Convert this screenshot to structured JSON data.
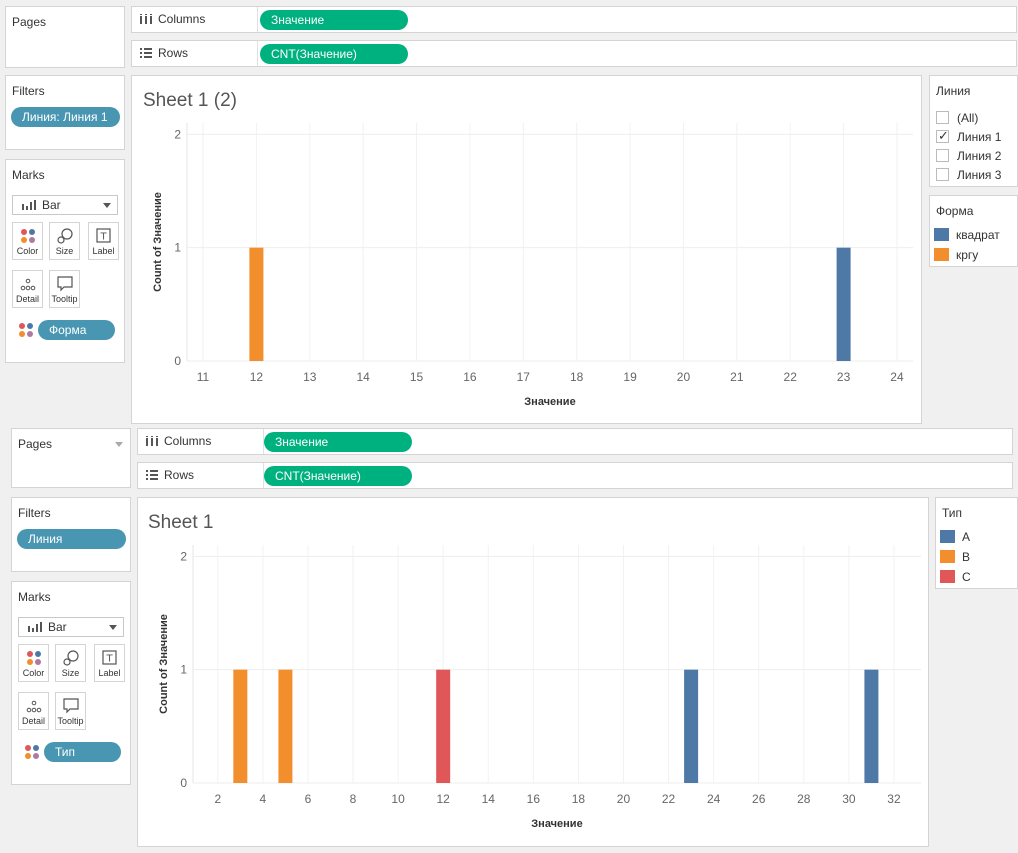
{
  "top": {
    "pages_title": "Pages",
    "columns_label": "Columns",
    "columns_pill": "Значение",
    "rows_label": "Rows",
    "rows_pill": "CNT(Значение)",
    "filters_title": "Filters",
    "filter_pill": "Линия: Линия 1",
    "marks_title": "Marks",
    "mark_type": "Bar",
    "mark_buttons": [
      "Color",
      "Size",
      "Label",
      "Detail",
      "Tooltip"
    ],
    "marks_pill": "Форма",
    "sheet_title": "Sheet 1 (2)",
    "filter_card": {
      "title": "Линия",
      "items": [
        {
          "label": "(All)",
          "checked": false
        },
        {
          "label": "Линия 1",
          "checked": true
        },
        {
          "label": "Линия 2",
          "checked": false
        },
        {
          "label": "Линия 3",
          "checked": false
        }
      ]
    },
    "legend": {
      "title": "Форма",
      "items": [
        {
          "label": "квадрат",
          "color": "#4e79a7"
        },
        {
          "label": "кргу",
          "color": "#f28e2b"
        }
      ]
    },
    "chart_data": {
      "type": "bar",
      "xlabel": "Значение",
      "ylabel": "Count of Значение",
      "xlim": [
        10.7,
        24.3
      ],
      "ylim": [
        0,
        2.1
      ],
      "xticks": [
        11,
        12,
        13,
        14,
        15,
        16,
        17,
        18,
        19,
        20,
        21,
        22,
        23,
        24
      ],
      "yticks": [
        0,
        1,
        2
      ],
      "grid": true,
      "series": [
        {
          "name": "кргу",
          "color": "#f28e2b",
          "points": [
            {
              "x": 12,
              "y": 1
            }
          ]
        },
        {
          "name": "квадрат",
          "color": "#4e79a7",
          "points": [
            {
              "x": 23,
              "y": 1
            }
          ]
        }
      ]
    }
  },
  "bottom": {
    "pages_title": "Pages",
    "columns_label": "Columns",
    "columns_pill": "Значение",
    "rows_label": "Rows",
    "rows_pill": "CNT(Значение)",
    "filters_title": "Filters",
    "filter_pill": "Линия",
    "marks_title": "Marks",
    "mark_type": "Bar",
    "mark_buttons": [
      "Color",
      "Size",
      "Label",
      "Detail",
      "Tooltip"
    ],
    "marks_pill": "Тип",
    "sheet_title": "Sheet 1",
    "legend": {
      "title": "Тип",
      "items": [
        {
          "label": "A",
          "color": "#4e79a7"
        },
        {
          "label": "B",
          "color": "#f28e2b"
        },
        {
          "label": "C",
          "color": "#e15759"
        }
      ]
    },
    "chart_data": {
      "type": "bar",
      "xlabel": "Значение",
      "ylabel": "Count of Значение",
      "xlim": [
        0.9,
        33.2
      ],
      "ylim": [
        0,
        2.1
      ],
      "xticks": [
        2,
        4,
        6,
        8,
        10,
        12,
        14,
        16,
        18,
        20,
        22,
        24,
        26,
        28,
        30,
        32
      ],
      "yticks": [
        0,
        1,
        2
      ],
      "grid": true,
      "series": [
        {
          "name": "A",
          "color": "#4e79a7",
          "points": [
            {
              "x": 23,
              "y": 1
            },
            {
              "x": 31,
              "y": 1
            }
          ]
        },
        {
          "name": "B",
          "color": "#f28e2b",
          "points": [
            {
              "x": 3,
              "y": 1
            },
            {
              "x": 5,
              "y": 1
            }
          ]
        },
        {
          "name": "C",
          "color": "#e15759",
          "points": [
            {
              "x": 12,
              "y": 1
            }
          ]
        }
      ]
    }
  }
}
